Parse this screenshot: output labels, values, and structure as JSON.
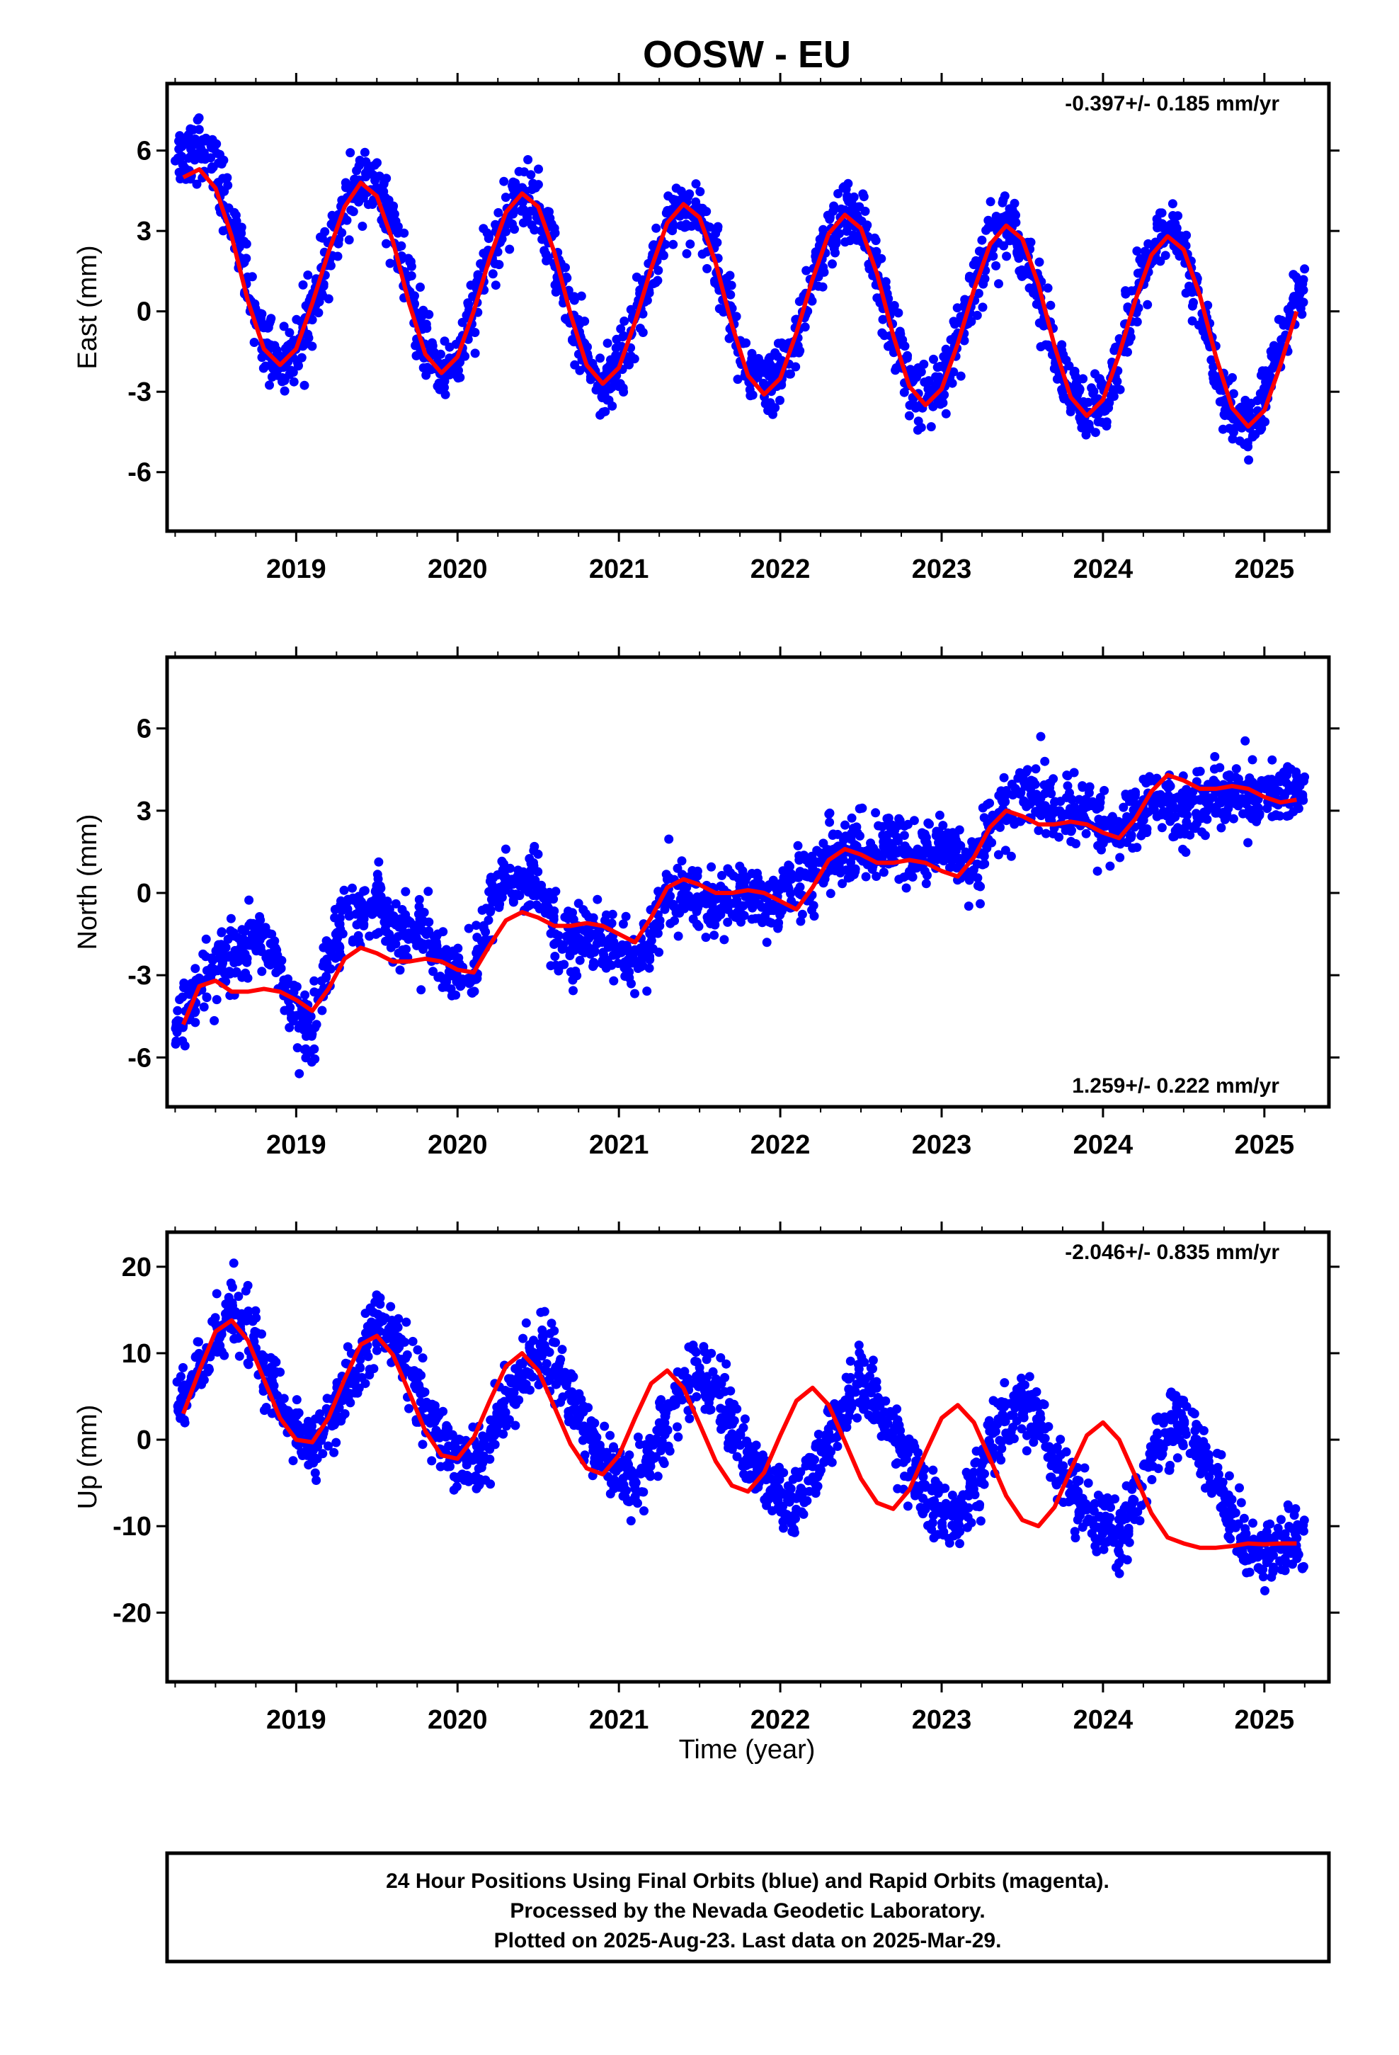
{
  "title": "OOSW - EU",
  "xlabel": "Time (year)",
  "caption": [
    "24 Hour Positions Using Final Orbits (blue) and Rapid Orbits (magenta).",
    "Processed by the Nevada Geodetic Laboratory.",
    "Plotted on 2025-Aug-23. Last data on 2025-Mar-29."
  ],
  "colors": {
    "points": "#0000ff",
    "fit": "#ff0000",
    "frame": "#000000"
  },
  "chart_data": [
    {
      "type": "scatter",
      "ylabel": "East (mm)",
      "rate_label": "-0.397+/- 0.185 mm/yr",
      "rate_position": "top-right",
      "xlim": [
        2018.2,
        2025.4
      ],
      "ylim": [
        -8.2,
        8.5
      ],
      "yticks": [
        -6,
        -3,
        0,
        3,
        6
      ],
      "xticks": [
        2019,
        2020,
        2021,
        2022,
        2023,
        2024,
        2025
      ],
      "series": [
        {
          "kind": "daily positions",
          "x": [
            2018.3,
            2018.4,
            2018.5,
            2018.6,
            2018.7,
            2018.8,
            2018.9,
            2019.0,
            2019.1,
            2019.2,
            2019.3,
            2019.4,
            2019.5,
            2019.6,
            2019.7,
            2019.8,
            2019.9,
            2020.0,
            2020.1,
            2020.2,
            2020.3,
            2020.4,
            2020.5,
            2020.6,
            2020.7,
            2020.8,
            2020.9,
            2021.0,
            2021.1,
            2021.2,
            2021.3,
            2021.4,
            2021.5,
            2021.6,
            2021.7,
            2021.8,
            2021.9,
            2022.0,
            2022.1,
            2022.2,
            2022.3,
            2022.4,
            2022.5,
            2022.6,
            2022.7,
            2022.8,
            2022.9,
            2023.0,
            2023.1,
            2023.2,
            2023.3,
            2023.4,
            2023.5,
            2023.6,
            2023.7,
            2023.8,
            2023.9,
            2024.0,
            2024.1,
            2024.2,
            2024.3,
            2024.4,
            2024.5,
            2024.6,
            2024.7,
            2024.8,
            2024.9,
            2025.0,
            2025.1,
            2025.2
          ],
          "y": [
            5.8,
            6.3,
            5.2,
            3.5,
            1.0,
            -1.0,
            -2.0,
            -1.5,
            0.2,
            2.0,
            3.8,
            5.0,
            4.5,
            3.0,
            0.8,
            -1.2,
            -2.4,
            -1.8,
            0.0,
            2.0,
            3.6,
            4.4,
            3.8,
            2.2,
            0.0,
            -2.0,
            -2.8,
            -2.2,
            -0.5,
            1.5,
            3.3,
            4.0,
            3.5,
            2.0,
            -0.2,
            -2.2,
            -3.0,
            -2.5,
            -1.0,
            1.0,
            2.8,
            3.7,
            3.2,
            1.5,
            -0.8,
            -2.6,
            -3.4,
            -2.8,
            -1.2,
            0.8,
            2.8,
            3.3,
            2.6,
            0.8,
            -1.5,
            -3.2,
            -3.9,
            -3.2,
            -1.6,
            0.4,
            2.2,
            2.9,
            2.2,
            0.2,
            -2.2,
            -4.0,
            -4.3,
            -3.3,
            -1.4,
            0.8
          ]
        },
        {
          "kind": "fit",
          "x": [
            2018.3,
            2018.4,
            2018.5,
            2018.6,
            2018.7,
            2018.8,
            2018.9,
            2019.0,
            2019.1,
            2019.2,
            2019.3,
            2019.4,
            2019.5,
            2019.6,
            2019.7,
            2019.8,
            2019.9,
            2020.0,
            2020.1,
            2020.2,
            2020.3,
            2020.4,
            2020.5,
            2020.6,
            2020.7,
            2020.8,
            2020.9,
            2021.0,
            2021.1,
            2021.2,
            2021.3,
            2021.4,
            2021.5,
            2021.6,
            2021.7,
            2021.8,
            2021.9,
            2022.0,
            2022.1,
            2022.2,
            2022.3,
            2022.4,
            2022.5,
            2022.6,
            2022.7,
            2022.8,
            2022.9,
            2023.0,
            2023.1,
            2023.2,
            2023.3,
            2023.4,
            2023.5,
            2023.6,
            2023.7,
            2023.8,
            2023.9,
            2024.0,
            2024.1,
            2024.2,
            2024.3,
            2024.4,
            2024.5,
            2024.6,
            2024.7,
            2024.8,
            2024.9,
            2025.0,
            2025.1,
            2025.2
          ],
          "y": [
            5.0,
            5.3,
            4.6,
            2.8,
            0.4,
            -1.4,
            -2.0,
            -1.4,
            0.3,
            2.2,
            3.9,
            4.8,
            4.3,
            2.6,
            0.3,
            -1.6,
            -2.3,
            -1.7,
            0.0,
            2.0,
            3.7,
            4.4,
            3.9,
            2.2,
            -0.1,
            -2.0,
            -2.7,
            -2.1,
            -0.4,
            1.6,
            3.3,
            4.0,
            3.5,
            1.8,
            -0.5,
            -2.4,
            -3.1,
            -2.5,
            -0.8,
            1.2,
            2.9,
            3.6,
            3.1,
            1.4,
            -0.9,
            -2.8,
            -3.5,
            -2.9,
            -1.2,
            0.8,
            2.5,
            3.2,
            2.7,
            1.0,
            -1.3,
            -3.2,
            -3.9,
            -3.3,
            -1.6,
            0.4,
            2.1,
            2.8,
            2.3,
            0.6,
            -1.7,
            -3.6,
            -4.3,
            -3.7,
            -2.0,
            0.0
          ]
        }
      ]
    },
    {
      "type": "scatter",
      "ylabel": "North (mm)",
      "rate_label": "1.259+/- 0.222 mm/yr",
      "rate_position": "bottom-right",
      "xlim": [
        2018.2,
        2025.4
      ],
      "ylim": [
        -7.8,
        8.6
      ],
      "yticks": [
        -6,
        -3,
        0,
        3,
        6
      ],
      "xticks": [
        2019,
        2020,
        2021,
        2022,
        2023,
        2024,
        2025
      ],
      "series": [
        {
          "kind": "daily positions",
          "x": [
            2018.3,
            2018.4,
            2018.5,
            2018.6,
            2018.7,
            2018.8,
            2018.9,
            2019.0,
            2019.1,
            2019.2,
            2019.3,
            2019.4,
            2019.5,
            2019.6,
            2019.7,
            2019.8,
            2019.9,
            2020.0,
            2020.1,
            2020.2,
            2020.3,
            2020.4,
            2020.5,
            2020.6,
            2020.7,
            2020.8,
            2020.9,
            2021.0,
            2021.1,
            2021.2,
            2021.3,
            2021.4,
            2021.5,
            2021.6,
            2021.7,
            2021.8,
            2021.9,
            2022.0,
            2022.1,
            2022.2,
            2022.3,
            2022.4,
            2022.5,
            2022.6,
            2022.7,
            2022.8,
            2022.9,
            2023.0,
            2023.1,
            2023.2,
            2023.3,
            2023.4,
            2023.5,
            2023.6,
            2023.7,
            2023.8,
            2023.9,
            2024.0,
            2024.1,
            2024.2,
            2024.3,
            2024.4,
            2024.5,
            2024.6,
            2024.7,
            2024.8,
            2024.9,
            2025.0,
            2025.1,
            2025.2
          ],
          "y": [
            -4.8,
            -3.5,
            -2.8,
            -2.5,
            -2.2,
            -1.5,
            -2.8,
            -4.5,
            -5.0,
            -2.5,
            -0.5,
            -0.8,
            -0.3,
            -1.0,
            -1.5,
            -1.5,
            -2.3,
            -2.8,
            -3.0,
            -0.5,
            0.5,
            0.2,
            0.5,
            -1.5,
            -1.8,
            -1.5,
            -1.8,
            -2.0,
            -3.0,
            -1.5,
            -0.2,
            0.0,
            -0.2,
            -0.5,
            -0.3,
            0.2,
            -0.5,
            0.0,
            0.2,
            0.5,
            1.5,
            1.2,
            1.8,
            1.5,
            1.8,
            1.2,
            1.5,
            1.8,
            1.5,
            0.8,
            2.5,
            3.0,
            3.5,
            3.5,
            3.0,
            2.8,
            3.0,
            2.5,
            2.2,
            2.8,
            3.5,
            3.2,
            3.0,
            3.2,
            3.5,
            3.8,
            3.5,
            3.5,
            3.8,
            3.5
          ]
        },
        {
          "kind": "fit",
          "x": [
            2018.3,
            2018.4,
            2018.5,
            2018.6,
            2018.7,
            2018.8,
            2018.9,
            2019.0,
            2019.1,
            2019.2,
            2019.3,
            2019.4,
            2019.5,
            2019.6,
            2019.7,
            2019.8,
            2019.9,
            2020.0,
            2020.1,
            2020.2,
            2020.3,
            2020.4,
            2020.5,
            2020.6,
            2020.7,
            2020.8,
            2020.9,
            2021.0,
            2021.1,
            2021.2,
            2021.3,
            2021.4,
            2021.5,
            2021.6,
            2021.7,
            2021.8,
            2021.9,
            2022.0,
            2022.1,
            2022.2,
            2022.3,
            2022.4,
            2022.5,
            2022.6,
            2022.7,
            2022.8,
            2022.9,
            2023.0,
            2023.1,
            2023.2,
            2023.3,
            2023.4,
            2023.5,
            2023.6,
            2023.7,
            2023.8,
            2023.9,
            2024.0,
            2024.1,
            2024.2,
            2024.3,
            2024.4,
            2024.5,
            2024.6,
            2024.7,
            2024.8,
            2024.9,
            2025.0,
            2025.1,
            2025.2
          ],
          "y": [
            -4.8,
            -3.4,
            -3.2,
            -3.6,
            -3.6,
            -3.5,
            -3.6,
            -3.9,
            -4.3,
            -3.5,
            -2.4,
            -2.0,
            -2.2,
            -2.5,
            -2.5,
            -2.4,
            -2.5,
            -2.8,
            -2.9,
            -1.9,
            -1.0,
            -0.7,
            -0.9,
            -1.2,
            -1.2,
            -1.1,
            -1.2,
            -1.5,
            -1.8,
            -0.9,
            0.2,
            0.5,
            0.3,
            0.0,
            0.0,
            0.1,
            0.0,
            -0.3,
            -0.6,
            0.2,
            1.2,
            1.6,
            1.4,
            1.1,
            1.1,
            1.2,
            1.1,
            0.8,
            0.6,
            1.3,
            2.4,
            3.0,
            2.8,
            2.5,
            2.5,
            2.6,
            2.5,
            2.2,
            2.0,
            2.7,
            3.7,
            4.3,
            4.1,
            3.8,
            3.8,
            3.9,
            3.8,
            3.5,
            3.3,
            3.4
          ]
        }
      ]
    },
    {
      "type": "scatter",
      "ylabel": "Up (mm)",
      "rate_label": "-2.046+/- 0.835 mm/yr",
      "rate_position": "top-right",
      "xlim": [
        2018.2,
        2025.4
      ],
      "ylim": [
        -28,
        24
      ],
      "yticks": [
        -20,
        -10,
        0,
        10,
        20
      ],
      "xticks": [
        2019,
        2020,
        2021,
        2022,
        2023,
        2024,
        2025
      ],
      "series": [
        {
          "kind": "daily positions",
          "x": [
            2018.3,
            2018.4,
            2018.5,
            2018.6,
            2018.7,
            2018.8,
            2018.9,
            2019.0,
            2019.1,
            2019.2,
            2019.3,
            2019.4,
            2019.5,
            2019.6,
            2019.7,
            2019.8,
            2019.9,
            2020.0,
            2020.1,
            2020.2,
            2020.3,
            2020.4,
            2020.5,
            2020.6,
            2020.7,
            2020.8,
            2020.9,
            2021.0,
            2021.1,
            2021.2,
            2021.3,
            2021.4,
            2021.5,
            2021.6,
            2021.7,
            2021.8,
            2021.9,
            2022.0,
            2022.1,
            2022.2,
            2022.3,
            2022.4,
            2022.5,
            2022.6,
            2022.7,
            2022.8,
            2022.9,
            2023.0,
            2023.1,
            2023.2,
            2023.3,
            2023.4,
            2023.5,
            2023.6,
            2023.7,
            2023.8,
            2023.9,
            2024.0,
            2024.1,
            2024.2,
            2024.3,
            2024.4,
            2024.5,
            2024.6,
            2024.7,
            2024.8,
            2024.9,
            2025.0,
            2025.1,
            2025.2
          ],
          "y": [
            4,
            8,
            12,
            15,
            13,
            8,
            4,
            1,
            -1,
            2,
            5,
            9,
            13,
            12,
            8,
            4,
            0,
            -2,
            -3,
            0,
            4,
            8,
            10,
            9,
            5,
            1,
            -2,
            -4,
            -5,
            -2,
            2,
            6,
            8,
            6,
            2,
            -2,
            -5,
            -7,
            -8,
            -4,
            0,
            4,
            7,
            5,
            1,
            -3,
            -7,
            -8,
            -9,
            -6,
            -1,
            3,
            4,
            2,
            -3,
            -6,
            -9,
            -10,
            -11,
            -7,
            -2,
            1,
            2,
            -1,
            -5,
            -9,
            -12,
            -13,
            -13,
            -12
          ]
        },
        {
          "kind": "fit",
          "x": [
            2018.3,
            2018.4,
            2018.5,
            2018.6,
            2018.7,
            2018.8,
            2018.9,
            2019.0,
            2019.1,
            2019.2,
            2019.3,
            2019.4,
            2019.5,
            2019.6,
            2019.7,
            2019.8,
            2019.9,
            2020.0,
            2020.1,
            2020.2,
            2020.3,
            2020.4,
            2020.5,
            2020.6,
            2020.7,
            2020.8,
            2020.9,
            2021.0,
            2021.1,
            2021.2,
            2021.3,
            2021.4,
            2021.5,
            2021.6,
            2021.7,
            2021.8,
            2021.9,
            2022.0,
            2022.1,
            2022.2,
            2022.3,
            2022.4,
            2022.5,
            2022.6,
            2022.7,
            2022.8,
            2022.9,
            2023.0,
            2023.1,
            2023.2,
            2023.3,
            2023.4,
            2023.5,
            2023.6,
            2023.7,
            2023.8,
            2023.9,
            2024.0,
            2024.1,
            2024.2,
            2024.3,
            2024.4,
            2024.5,
            2024.6,
            2024.7,
            2024.8,
            2024.9,
            2025.0,
            2025.1,
            2025.2
          ],
          "y": [
            3.0,
            8.0,
            12.5,
            13.8,
            11.5,
            7.0,
            2.5,
            0.0,
            -0.3,
            2.5,
            7.0,
            11.0,
            12.0,
            9.8,
            5.5,
            1.0,
            -1.8,
            -2.2,
            0.2,
            4.5,
            8.5,
            10.0,
            8.0,
            3.8,
            -0.5,
            -3.3,
            -4.0,
            -1.8,
            2.5,
            6.5,
            8.0,
            6.0,
            1.8,
            -2.5,
            -5.3,
            -6.0,
            -3.8,
            0.5,
            4.5,
            6.0,
            4.0,
            -0.2,
            -4.5,
            -7.3,
            -8.0,
            -5.8,
            -1.5,
            2.5,
            4.0,
            2.0,
            -2.2,
            -6.5,
            -9.3,
            -10.0,
            -7.8,
            -3.5,
            0.5,
            2.0,
            0.0,
            -4.2,
            -8.5,
            -11.3,
            -12.0,
            -12.5,
            -12.5,
            -12.3,
            -12.0,
            -12.1,
            -12.0,
            -12.0
          ]
        }
      ]
    }
  ]
}
